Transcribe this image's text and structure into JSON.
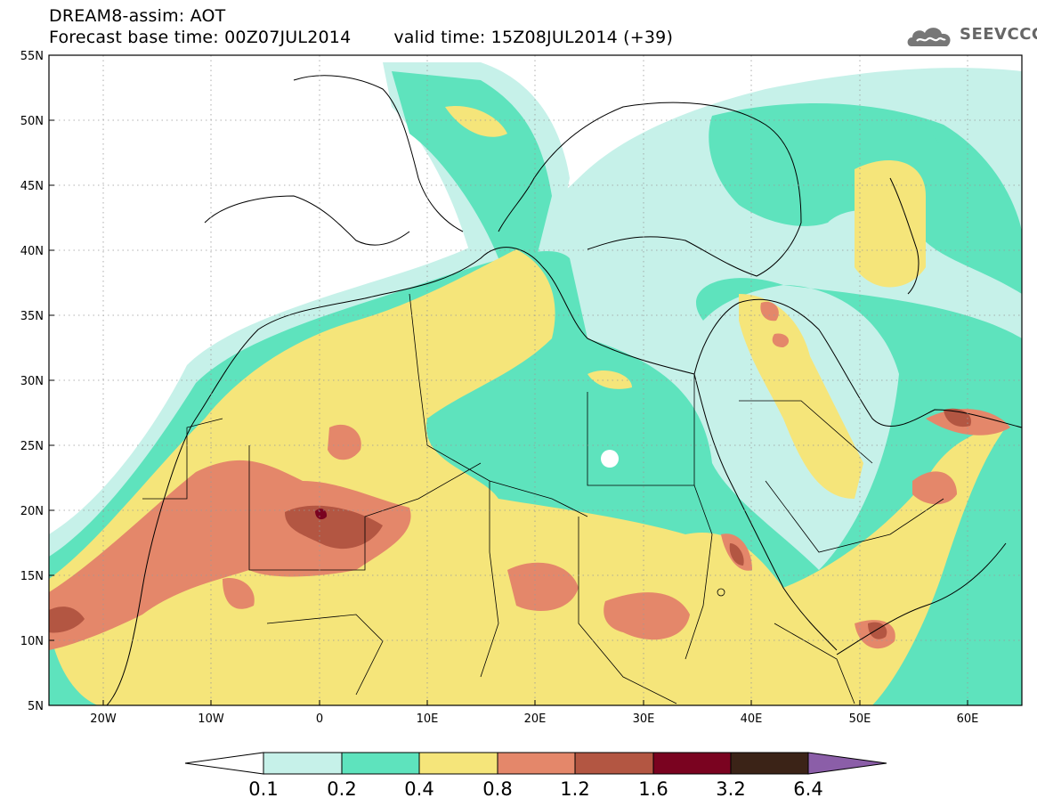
{
  "title": {
    "line1": "DREAM8-assim: AOT",
    "base": "Forecast base time: 00Z07JUL2014",
    "valid": "valid time: 15Z08JUL2014 (+39)"
  },
  "logo": {
    "text": "SEEVCCC",
    "icon": "cloud-icon"
  },
  "map": {
    "lat_labels": [
      "55N",
      "50N",
      "45N",
      "40N",
      "35N",
      "30N",
      "25N",
      "20N",
      "15N",
      "10N",
      "5N"
    ],
    "lon_labels": [
      "20W",
      "10W",
      "0",
      "10E",
      "20E",
      "30E",
      "40E",
      "50E",
      "60E"
    ],
    "lat_range": [
      5,
      55
    ],
    "lon_range": [
      -25,
      65
    ]
  },
  "colorbar": {
    "labels": [
      "0.1",
      "0.2",
      "0.4",
      "0.8",
      "1.2",
      "1.6",
      "3.2",
      "6.4"
    ],
    "colors": [
      "#ffffff",
      "#c6f1e9",
      "#5ee3bd",
      "#f5e57a",
      "#e4876a",
      "#b35642",
      "#7a0320",
      "#3b2317",
      "#8b5ea8"
    ]
  }
}
